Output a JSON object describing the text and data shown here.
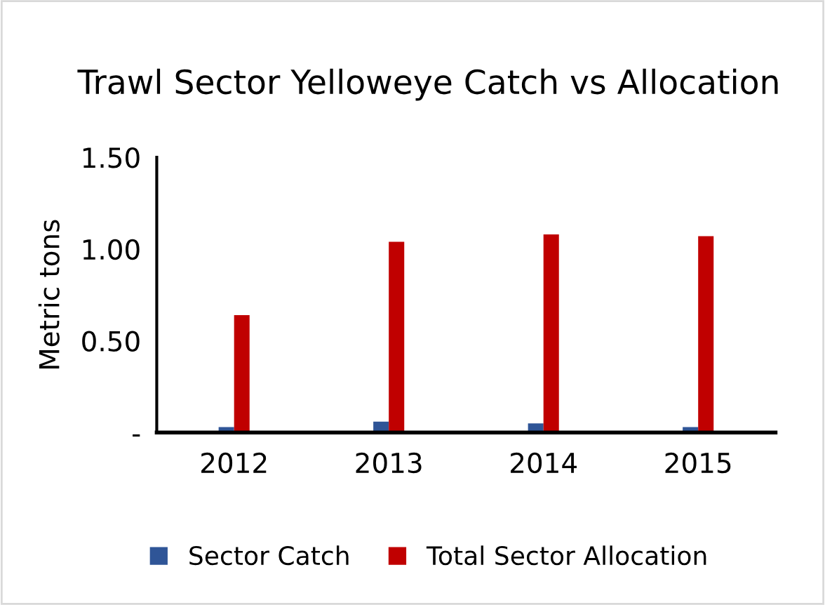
{
  "chart_data": {
    "type": "bar",
    "title": "Trawl Sector Yelloweye Catch vs Allocation",
    "ylabel": "Metric tons",
    "categories": [
      "2012",
      "2013",
      "2014",
      "2015"
    ],
    "series": [
      {
        "name": "Sector Catch",
        "color": "#2f5597",
        "values": [
          0.03,
          0.06,
          0.05,
          0.03
        ]
      },
      {
        "name": "Total Sector Allocation",
        "color": "#c00000",
        "values": [
          0.64,
          1.04,
          1.08,
          1.07
        ]
      }
    ],
    "ylim": [
      0,
      1.5
    ],
    "yticks": [
      {
        "value": 0,
        "label": "-"
      },
      {
        "value": 0.5,
        "label": "0.50"
      },
      {
        "value": 1.0,
        "label": "1.00"
      },
      {
        "value": 1.5,
        "label": "1.50"
      }
    ],
    "grid": false,
    "legend": "bottom"
  }
}
